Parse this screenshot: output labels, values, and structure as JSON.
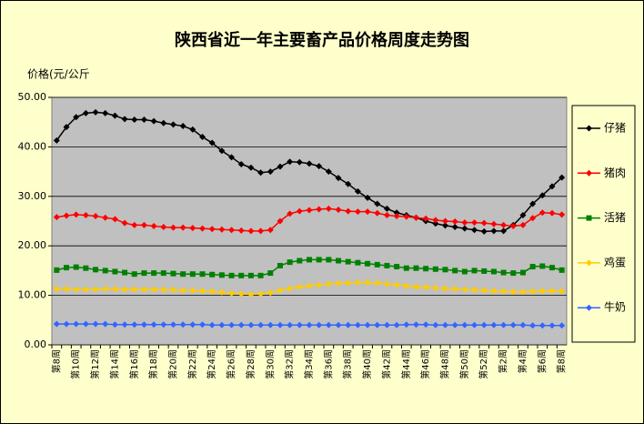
{
  "chart_data": {
    "type": "line",
    "title": "陕西省近一年主要畜产品价格周度走势图",
    "ylabel": "价格(元/公斤",
    "categories": [
      "第8周",
      null,
      "第10周",
      null,
      "第12周",
      null,
      "第14周",
      null,
      "第16周",
      null,
      "第18周",
      null,
      "第20周",
      null,
      "第22周",
      null,
      "第24周",
      null,
      "第26周",
      null,
      "第28周",
      null,
      "第30周",
      null,
      "第32周",
      null,
      "第34周",
      null,
      "第36周",
      null,
      "第38周",
      null,
      "第40周",
      null,
      "第42周",
      null,
      "第44周",
      null,
      "第46周",
      null,
      "第48周",
      null,
      "第50周",
      null,
      "第52周",
      null,
      "第2周",
      null,
      "第4周",
      null,
      "第6周",
      null,
      "第8周"
    ],
    "series": [
      {
        "name": "仔猪",
        "color": "#000000",
        "marker": "diamond",
        "values": [
          41.3,
          44.0,
          46.0,
          46.8,
          47.0,
          46.8,
          46.3,
          45.6,
          45.5,
          45.5,
          45.2,
          44.8,
          44.5,
          44.2,
          43.5,
          42.0,
          40.8,
          39.2,
          37.9,
          36.5,
          35.8,
          34.8,
          35.0,
          36.0,
          37.0,
          36.9,
          36.6,
          36.1,
          35.0,
          33.7,
          32.5,
          31.0,
          29.7,
          28.5,
          27.5,
          26.7,
          26.2,
          25.7,
          25.0,
          24.5,
          24.1,
          23.8,
          23.5,
          23.2,
          22.9,
          23.0,
          23.0,
          24.2,
          26.2,
          28.5,
          30.2,
          32.0,
          33.8
        ]
      },
      {
        "name": "猪肉",
        "color": "#ff0000",
        "marker": "diamond",
        "values": [
          25.8,
          26.1,
          26.3,
          26.2,
          26.0,
          25.7,
          25.4,
          24.6,
          24.2,
          24.2,
          24.0,
          23.8,
          23.7,
          23.7,
          23.6,
          23.5,
          23.4,
          23.3,
          23.2,
          23.1,
          23.0,
          23.0,
          23.2,
          25.0,
          26.5,
          27.0,
          27.2,
          27.4,
          27.5,
          27.3,
          27.0,
          26.9,
          26.9,
          26.6,
          26.2,
          26.0,
          25.9,
          25.7,
          25.5,
          25.2,
          25.0,
          24.9,
          24.7,
          24.7,
          24.6,
          24.4,
          24.2,
          24.0,
          24.2,
          25.6,
          26.7,
          26.6,
          26.3
        ]
      },
      {
        "name": "活猪",
        "color": "#008000",
        "marker": "square",
        "values": [
          15.1,
          15.6,
          15.7,
          15.5,
          15.2,
          15.0,
          14.8,
          14.6,
          14.3,
          14.5,
          14.5,
          14.5,
          14.4,
          14.3,
          14.3,
          14.3,
          14.2,
          14.1,
          14.0,
          14.0,
          14.0,
          14.0,
          14.5,
          16.0,
          16.7,
          17.0,
          17.2,
          17.2,
          17.2,
          17.0,
          16.8,
          16.6,
          16.4,
          16.2,
          16.0,
          15.8,
          15.5,
          15.5,
          15.4,
          15.3,
          15.2,
          15.0,
          14.8,
          15.0,
          14.9,
          14.8,
          14.6,
          14.5,
          14.6,
          15.8,
          15.9,
          15.6,
          15.1
        ]
      },
      {
        "name": "鸡蛋",
        "color": "#ffcc00",
        "marker": "diamond",
        "values": [
          11.3,
          11.3,
          11.2,
          11.2,
          11.2,
          11.3,
          11.3,
          11.2,
          11.2,
          11.2,
          11.2,
          11.2,
          11.1,
          11.0,
          11.0,
          10.9,
          10.8,
          10.6,
          10.4,
          10.3,
          10.2,
          10.3,
          10.5,
          11.0,
          11.4,
          11.7,
          11.9,
          12.1,
          12.3,
          12.4,
          12.5,
          12.6,
          12.6,
          12.5,
          12.3,
          12.1,
          11.9,
          11.7,
          11.6,
          11.5,
          11.4,
          11.3,
          11.2,
          11.1,
          11.0,
          10.9,
          10.8,
          10.7,
          10.7,
          10.8,
          10.9,
          10.9,
          10.8
        ]
      },
      {
        "name": "牛奶",
        "color": "#3366ff",
        "marker": "diamond",
        "values": [
          4.2,
          4.2,
          4.2,
          4.2,
          4.2,
          4.2,
          4.1,
          4.1,
          4.1,
          4.1,
          4.1,
          4.1,
          4.1,
          4.1,
          4.1,
          4.1,
          4.0,
          4.0,
          4.0,
          4.0,
          4.0,
          4.0,
          4.0,
          4.0,
          4.0,
          4.0,
          4.0,
          4.0,
          4.0,
          4.0,
          4.0,
          4.0,
          4.0,
          4.0,
          4.0,
          4.0,
          4.1,
          4.1,
          4.1,
          4.0,
          4.0,
          4.0,
          4.0,
          4.0,
          4.0,
          4.0,
          4.0,
          4.0,
          4.0,
          3.9,
          3.9,
          3.9,
          3.9
        ]
      }
    ],
    "ylim": [
      0,
      50
    ],
    "yticks": [
      {
        "value": 0,
        "label": "0.00"
      },
      {
        "value": 10,
        "label": "10.00"
      },
      {
        "value": 20,
        "label": "20.00"
      },
      {
        "value": 30,
        "label": "30.00"
      },
      {
        "value": 40,
        "label": "40.00"
      },
      {
        "value": 50,
        "label": "50.00"
      }
    ],
    "grid": true,
    "legend": "right"
  }
}
